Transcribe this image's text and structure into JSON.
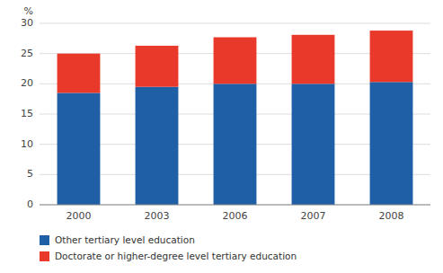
{
  "chart_data": {
    "type": "bar",
    "stacked": true,
    "ylabel": "%",
    "categories": [
      "2000",
      "2003",
      "2006",
      "2007",
      "2008"
    ],
    "series": [
      {
        "name": "Other tertiary level education",
        "color": "#1F5FA6",
        "values": [
          18.5,
          19.5,
          20.0,
          20.0,
          20.3
        ]
      },
      {
        "name": "Doctorate or higher-degree level tertiary education",
        "color": "#E8392A",
        "values": [
          6.5,
          6.8,
          7.7,
          8.1,
          8.5
        ]
      }
    ],
    "ylim": [
      0,
      30
    ],
    "yticks": [
      0,
      5,
      10,
      15,
      20,
      25,
      30
    ],
    "grid": true,
    "legend": "bottom"
  }
}
